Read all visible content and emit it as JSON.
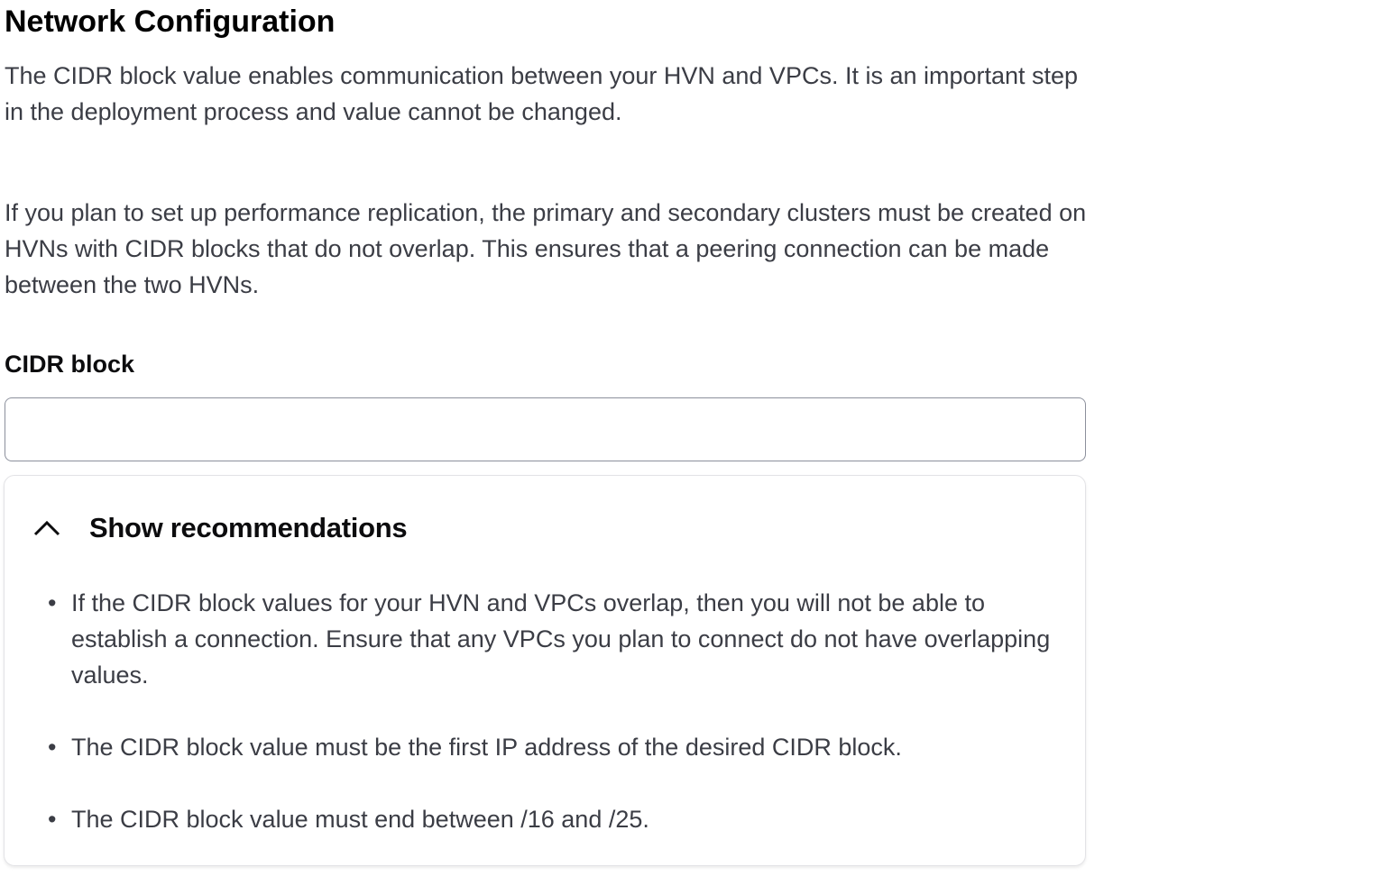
{
  "title": "Network Configuration",
  "description_1": "The CIDR block value enables communication between your HVN and VPCs. It is an important step in the deployment process and value cannot be changed.",
  "description_2": "If you plan to set up performance replication, the primary and secondary clusters must be created on HVNs with CIDR blocks that do not overlap. This ensures that a peering connection can be made between the two HVNs.",
  "cidr_field": {
    "label": "CIDR block",
    "value": ""
  },
  "recommendations": {
    "toggle_label": "Show recommendations",
    "toggle_icon": "chevron-up-icon",
    "expanded": true,
    "items": [
      "If the CIDR block values for your HVN and VPCs overlap, then you will not be able to establish a connection. Ensure that any VPCs you plan to connect do not have overlapping values.",
      "The CIDR block value must be the first IP address of the desired CIDR block.",
      "The CIDR block value must end between /16 and /25."
    ]
  }
}
